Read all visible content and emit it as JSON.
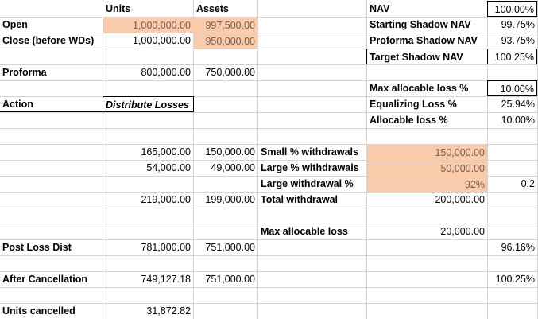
{
  "header": {
    "units": "Units",
    "assets": "Assets",
    "nav": "NAV",
    "nav_value": "100.00%"
  },
  "rows": {
    "open": {
      "label": "Open",
      "units": "1,000,000.00",
      "assets": "997,500.00"
    },
    "close": {
      "label": "Close (before WDs)",
      "units": "1,000,000.00",
      "assets": "950,000.00"
    },
    "proforma": {
      "label": "Proforma",
      "units": "800,000.00",
      "assets": "750,000.00"
    },
    "action": {
      "label": "Action",
      "value": "Distribute Losses"
    },
    "small_wd": {
      "units": "165,000.00",
      "assets": "150,000.00",
      "label": "Small % withdrawals",
      "value": "150,000.00"
    },
    "large_wd": {
      "units": "54,000.00",
      "assets": "49,000.00",
      "label": "Large % withdrawals",
      "value": "50,000.00"
    },
    "large_pct": {
      "label": "Large withdrawal %",
      "value": "92%",
      "extra": "0.2"
    },
    "total_wd": {
      "units": "219,000.00",
      "assets": "199,000.00",
      "label": "Total withdrawal",
      "value": "200,000.00"
    },
    "max_loss": {
      "label": "Max allocable loss",
      "value": "20,000.00"
    },
    "post_loss": {
      "label": "Post Loss Dist",
      "units": "781,000.00",
      "assets": "751,000.00",
      "pct": "96.16%"
    },
    "after_cancel": {
      "label": "After Cancellation",
      "units": "749,127.18",
      "assets": "751,000.00",
      "pct": "100.25%"
    },
    "units_cancelled": {
      "label": "Units cancelled",
      "units": "31,872.82"
    }
  },
  "nav_panel": {
    "starting": {
      "label": "Starting Shadow NAV",
      "value": "99.75%"
    },
    "proforma": {
      "label": "Proforma Shadow NAV",
      "value": "93.75%"
    },
    "target": {
      "label": "Target Shadow NAV",
      "value": "100.25%"
    },
    "max_loss_pct": {
      "label": "Max allocable loss %",
      "value": "10.00%"
    },
    "equalizing": {
      "label": "Equalizing Loss %",
      "value": "25.94%"
    },
    "allocable": {
      "label": "Allocable loss %",
      "value": "10.00%"
    }
  },
  "colors": {
    "input_fill": "#f8cbad",
    "gridline": "#d4d4d4"
  }
}
